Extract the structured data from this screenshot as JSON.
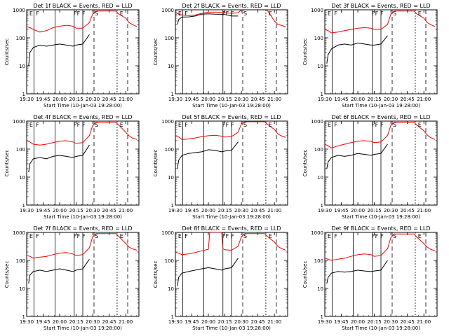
{
  "chart_data": [
    {
      "type": "line",
      "title": "Det 1f BLACK = Events, RED = LLD",
      "xlabel": "Start Time (10-Jan-03 19:28:00)",
      "ylabel": "Counts/sec",
      "xlim": [
        19.5,
        21.2
      ],
      "ylim": [
        1,
        1000
      ],
      "yscale": "log",
      "x_ticks": [
        "19:30",
        "19:45",
        "20:00",
        "20:15",
        "20:30",
        "20:45",
        "21:00"
      ],
      "y_ticks": [
        "1",
        "10",
        "100",
        "1000"
      ],
      "markers": [
        "E",
        "F",
        "F",
        "F",
        "F",
        "S",
        "E"
      ],
      "series": [
        {
          "name": "BLACK = Events",
          "color": "#000000",
          "x": [
            19.53,
            19.55,
            19.6,
            19.7,
            19.8,
            19.9,
            20.0,
            20.1,
            20.2,
            20.25,
            20.35,
            20.45
          ],
          "values": [
            10,
            30,
            45,
            55,
            50,
            55,
            60,
            55,
            50,
            55,
            60,
            130
          ]
        },
        {
          "name": "RED = LLD",
          "color": "#ff0000",
          "x": [
            19.5,
            19.55,
            19.6,
            19.7,
            19.8,
            19.9,
            20.0,
            20.1,
            20.2,
            20.25,
            20.35,
            20.45,
            20.5,
            20.55,
            20.85,
            20.9,
            21.0,
            21.05,
            21.1,
            21.17
          ],
          "values": [
            250,
            230,
            200,
            160,
            180,
            230,
            260,
            280,
            260,
            220,
            220,
            350,
            700,
            900,
            900,
            700,
            500,
            350,
            300,
            250
          ]
        }
      ]
    },
    {
      "type": "line",
      "title": "Det 2f BLACK = Events, RED = LLD",
      "xlabel": "Start Time (10-Jan-03 19:28:00)",
      "ylabel": "Counts/sec",
      "xlim": [
        19.5,
        21.2
      ],
      "ylim": [
        1,
        1000
      ],
      "yscale": "log",
      "x_ticks": [
        "19:30",
        "19:45",
        "20:00",
        "20:15",
        "20:30",
        "20:45",
        "21:00"
      ],
      "y_ticks": [
        "1",
        "10",
        "100",
        "1000"
      ],
      "markers": [
        "E",
        "F",
        "F",
        "F",
        "F",
        "S",
        "E"
      ],
      "series": [
        {
          "name": "BLACK = Events",
          "color": "#000000",
          "x": [
            19.53,
            19.55,
            19.6,
            19.7,
            19.8,
            19.9,
            20.0,
            20.1,
            20.2,
            20.25,
            20.35,
            20.45
          ],
          "values": [
            300,
            450,
            550,
            560,
            600,
            700,
            720,
            700,
            690,
            680,
            600,
            600
          ]
        },
        {
          "name": "RED = LLD",
          "color": "#ff0000",
          "x": [
            19.5,
            19.55,
            19.6,
            19.7,
            19.8,
            19.9,
            20.0,
            20.1,
            20.2,
            20.25,
            20.35,
            20.45,
            20.5,
            20.55,
            20.85,
            20.9,
            21.0,
            21.05,
            21.1,
            21.17
          ],
          "values": [
            800,
            700,
            650,
            620,
            650,
            750,
            820,
            830,
            800,
            780,
            750,
            780,
            1000,
            1100,
            1100,
            900,
            400,
            300,
            280,
            250
          ]
        }
      ]
    },
    {
      "type": "line",
      "title": "Det 3f BLACK = Events, RED = LLD",
      "xlabel": "Start Time (10-Jan-03 19:28:00)",
      "ylabel": "Counts/sec",
      "xlim": [
        19.5,
        21.2
      ],
      "ylim": [
        1,
        1000
      ],
      "yscale": "log",
      "x_ticks": [
        "19:30",
        "19:45",
        "20:00",
        "20:15",
        "20:30",
        "20:45",
        "21:00"
      ],
      "y_ticks": [
        "1",
        "10",
        "100",
        "1000"
      ],
      "markers": [
        "E",
        "F",
        "F",
        "F",
        "F",
        "S",
        "E"
      ],
      "series": [
        {
          "name": "BLACK = Events",
          "color": "#000000",
          "x": [
            19.53,
            19.55,
            19.6,
            19.7,
            19.8,
            19.9,
            20.0,
            20.1,
            20.2,
            20.25,
            20.35,
            20.45
          ],
          "values": [
            12,
            25,
            40,
            55,
            60,
            55,
            65,
            60,
            55,
            55,
            60,
            120
          ]
        },
        {
          "name": "RED = LLD",
          "color": "#ff0000",
          "x": [
            19.5,
            19.55,
            19.6,
            19.7,
            19.8,
            19.9,
            20.0,
            20.1,
            20.2,
            20.25,
            20.35,
            20.45,
            20.5,
            20.55,
            20.85,
            20.9,
            21.0,
            21.05,
            21.1,
            21.17
          ],
          "values": [
            200,
            180,
            150,
            160,
            180,
            200,
            220,
            230,
            220,
            200,
            200,
            300,
            700,
            900,
            900,
            700,
            500,
            350,
            300,
            250
          ]
        }
      ]
    },
    {
      "type": "line",
      "title": "Det 4f BLACK = Events, RED = LLD",
      "xlabel": "Start Time (10-Jan-03 19:28:00)",
      "ylabel": "Counts/sec",
      "xlim": [
        19.5,
        21.2
      ],
      "ylim": [
        1,
        1000
      ],
      "yscale": "log",
      "x_ticks": [
        "19:30",
        "19:45",
        "20:00",
        "20:15",
        "20:30",
        "20:45",
        "21:00"
      ],
      "y_ticks": [
        "1",
        "10",
        "100",
        "1000"
      ],
      "markers": [
        "E",
        "F",
        "F",
        "F",
        "F",
        "S",
        "E"
      ],
      "series": [
        {
          "name": "BLACK = Events",
          "color": "#000000",
          "x": [
            19.53,
            19.55,
            19.6,
            19.7,
            19.8,
            19.9,
            20.0,
            20.1,
            20.2,
            20.25,
            20.35,
            20.45
          ],
          "values": [
            15,
            30,
            45,
            50,
            45,
            55,
            60,
            55,
            50,
            55,
            60,
            140
          ]
        },
        {
          "name": "RED = LLD",
          "color": "#ff0000",
          "x": [
            19.5,
            19.55,
            19.6,
            19.7,
            19.8,
            19.9,
            20.0,
            20.1,
            20.2,
            20.25,
            20.35,
            20.45,
            20.5,
            20.55,
            20.85,
            20.9,
            21.0,
            21.05,
            21.1,
            21.17
          ],
          "values": [
            200,
            180,
            150,
            140,
            150,
            170,
            190,
            200,
            180,
            160,
            170,
            300,
            700,
            900,
            900,
            700,
            400,
            300,
            250,
            220
          ]
        }
      ]
    },
    {
      "type": "line",
      "title": "Det 5f BLACK = Events, RED = LLD",
      "xlabel": "Start Time (10-Jan-03 19:28:00)",
      "ylabel": "Counts/sec",
      "xlim": [
        19.5,
        21.2
      ],
      "ylim": [
        1,
        1000
      ],
      "yscale": "log",
      "x_ticks": [
        "19:30",
        "19:45",
        "20:00",
        "20:15",
        "20:30",
        "20:45",
        "21:00"
      ],
      "y_ticks": [
        "1",
        "10",
        "100",
        "1000"
      ],
      "markers": [
        "E",
        "F",
        "F",
        "F",
        "F",
        "S",
        "E"
      ],
      "series": [
        {
          "name": "BLACK = Events",
          "color": "#000000",
          "x": [
            19.53,
            19.55,
            19.6,
            19.7,
            19.8,
            19.9,
            20.0,
            20.1,
            20.2,
            20.25,
            20.35,
            20.45
          ],
          "values": [
            20,
            40,
            60,
            70,
            75,
            80,
            95,
            90,
            80,
            85,
            90,
            180
          ]
        },
        {
          "name": "RED = LLD",
          "color": "#ff0000",
          "x": [
            19.5,
            19.55,
            19.6,
            19.7,
            19.8,
            19.9,
            20.0,
            20.1,
            20.2,
            20.25,
            20.35,
            20.45,
            20.5,
            20.55,
            20.85,
            20.9,
            21.0,
            21.05,
            21.1,
            21.17
          ],
          "values": [
            300,
            270,
            220,
            230,
            250,
            280,
            300,
            310,
            290,
            270,
            280,
            400,
            800,
            950,
            950,
            750,
            500,
            350,
            300,
            260
          ]
        }
      ]
    },
    {
      "type": "line",
      "title": "Det 6f BLACK = Events, RED = LLD",
      "xlabel": "Start Time (10-Jan-03 19:28:00)",
      "ylabel": "Counts/sec",
      "xlim": [
        19.5,
        21.2
      ],
      "ylim": [
        1,
        1000
      ],
      "yscale": "log",
      "x_ticks": [
        "19:30",
        "19:45",
        "20:00",
        "20:15",
        "20:30",
        "20:45",
        "21:00"
      ],
      "y_ticks": [
        "1",
        "10",
        "100",
        "1000"
      ],
      "markers": [
        "E",
        "F",
        "F",
        "F",
        "F",
        "S",
        "E"
      ],
      "series": [
        {
          "name": "BLACK = Events",
          "color": "#000000",
          "x": [
            19.53,
            19.55,
            19.6,
            19.7,
            19.8,
            19.9,
            20.0,
            20.1,
            20.2,
            20.25,
            20.35,
            20.45
          ],
          "values": [
            20,
            35,
            50,
            60,
            55,
            60,
            70,
            65,
            60,
            65,
            70,
            150
          ]
        },
        {
          "name": "RED = LLD",
          "color": "#ff0000",
          "x": [
            19.5,
            19.55,
            19.6,
            19.7,
            19.8,
            19.9,
            20.0,
            20.1,
            20.2,
            20.25,
            20.35,
            20.45,
            20.5,
            20.55,
            20.85,
            20.9,
            21.0,
            21.05,
            21.1,
            21.17
          ],
          "values": [
            150,
            130,
            110,
            130,
            150,
            170,
            190,
            200,
            190,
            170,
            180,
            300,
            700,
            900,
            900,
            700,
            450,
            320,
            260,
            220
          ]
        }
      ]
    },
    {
      "type": "line",
      "title": "Det 7f BLACK = Events, RED = LLD",
      "xlabel": "Start Time (10-Jan-03 19:28:00)",
      "ylabel": "Counts/sec",
      "xlim": [
        19.5,
        21.2
      ],
      "ylim": [
        1,
        1000
      ],
      "yscale": "log",
      "x_ticks": [
        "19:30",
        "19:45",
        "20:00",
        "20:15",
        "20:30",
        "20:45",
        "21:00"
      ],
      "y_ticks": [
        "1",
        "10",
        "100",
        "1000"
      ],
      "markers": [
        "E",
        "F",
        "F",
        "F",
        "F",
        "S",
        "E"
      ],
      "series": [
        {
          "name": "BLACK = Events",
          "color": "#000000",
          "x": [
            19.53,
            19.55,
            19.6,
            19.7,
            19.8,
            19.9,
            20.0,
            20.1,
            20.2,
            20.25,
            20.35,
            20.45
          ],
          "values": [
            15,
            30,
            40,
            45,
            40,
            45,
            50,
            45,
            40,
            45,
            50,
            110
          ]
        },
        {
          "name": "RED = LLD",
          "color": "#ff0000",
          "x": [
            19.5,
            19.55,
            19.6,
            19.7,
            19.8,
            19.9,
            20.0,
            20.1,
            20.2,
            20.25,
            20.35,
            20.45,
            20.5,
            20.55,
            20.85,
            20.9,
            21.0,
            21.05,
            21.1,
            21.17
          ],
          "values": [
            150,
            140,
            120,
            130,
            140,
            160,
            180,
            190,
            170,
            150,
            160,
            280,
            700,
            900,
            900,
            700,
            400,
            300,
            260,
            230
          ]
        }
      ]
    },
    {
      "type": "line",
      "title": "Det 8f BLACK = Events, RED = LLD",
      "xlabel": "Start Time (10-Jan-03 19:28:00)",
      "ylabel": "Counts/sec",
      "xlim": [
        19.5,
        21.2
      ],
      "ylim": [
        1,
        1000
      ],
      "yscale": "log",
      "x_ticks": [
        "19:30",
        "19:45",
        "20:00",
        "20:15",
        "20:30",
        "20:45",
        "21:00"
      ],
      "y_ticks": [
        "1",
        "10",
        "100",
        "1000"
      ],
      "markers": [
        "E",
        "F",
        "F",
        "F",
        "F",
        "S",
        "E"
      ],
      "series": [
        {
          "name": "BLACK = Events",
          "color": "#000000",
          "x": [
            19.53,
            19.55,
            19.6,
            19.7,
            19.8,
            19.9,
            20.0,
            20.1,
            20.2,
            20.25,
            20.35,
            20.45
          ],
          "values": [
            12,
            25,
            35,
            40,
            45,
            50,
            55,
            50,
            45,
            50,
            55,
            120
          ]
        },
        {
          "name": "RED = LLD",
          "color": "#ff0000",
          "x": [
            19.5,
            19.55,
            19.6,
            19.7,
            19.8,
            19.9,
            20.0,
            20.02,
            20.1,
            20.2,
            20.22,
            20.25,
            20.35,
            20.45,
            20.5,
            20.55,
            20.85,
            20.9,
            21.0,
            21.05,
            21.1,
            21.17
          ],
          "values": [
            200,
            180,
            160,
            170,
            190,
            220,
            250,
            1000,
            1000,
            1000,
            260,
            240,
            230,
            320,
            700,
            900,
            900,
            700,
            450,
            320,
            270,
            230
          ]
        }
      ]
    },
    {
      "type": "line",
      "title": "Det 9f BLACK = Events, RED = LLD",
      "xlabel": "Start Time (10-Jan-03 19:28:00)",
      "ylabel": "Counts/sec",
      "xlim": [
        19.5,
        21.2
      ],
      "ylim": [
        1,
        1000
      ],
      "yscale": "log",
      "x_ticks": [
        "19:30",
        "19:45",
        "20:00",
        "20:15",
        "20:30",
        "20:45",
        "21:00"
      ],
      "y_ticks": [
        "1",
        "10",
        "100",
        "1000"
      ],
      "markers": [
        "E",
        "F",
        "F",
        "F",
        "F",
        "S",
        "E"
      ],
      "series": [
        {
          "name": "BLACK = Events",
          "color": "#000000",
          "x": [
            19.53,
            19.55,
            19.6,
            19.7,
            19.8,
            19.9,
            20.0,
            20.1,
            20.2,
            20.25,
            20.35,
            20.45
          ],
          "values": [
            15,
            25,
            35,
            40,
            38,
            40,
            45,
            42,
            40,
            42,
            45,
            100
          ]
        },
        {
          "name": "RED = LLD",
          "color": "#ff0000",
          "x": [
            19.5,
            19.55,
            19.6,
            19.7,
            19.8,
            19.9,
            20.0,
            20.1,
            20.2,
            20.25,
            20.35,
            20.45,
            20.5,
            20.55,
            20.85,
            20.9,
            21.0,
            21.05,
            21.1,
            21.17
          ],
          "values": [
            120,
            110,
            100,
            110,
            120,
            140,
            160,
            170,
            160,
            140,
            150,
            260,
            650,
            880,
            880,
            650,
            400,
            300,
            250,
            220
          ]
        }
      ]
    }
  ]
}
